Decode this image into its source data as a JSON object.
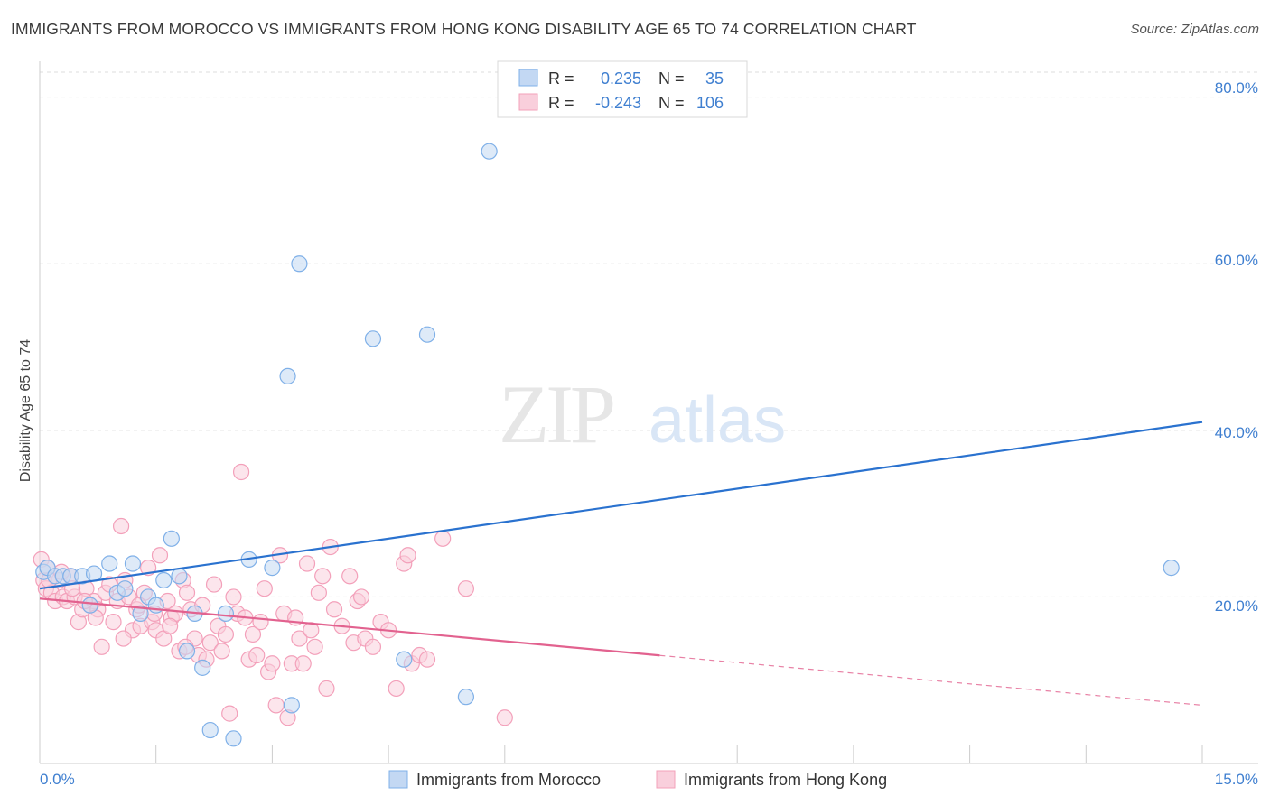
{
  "title": "IMMIGRANTS FROM MOROCCO VS IMMIGRANTS FROM HONG KONG DISABILITY AGE 65 TO 74 CORRELATION CHART",
  "source": "Source: ZipAtlas.com",
  "watermark": {
    "zip": "ZIP",
    "atlas": "atlas"
  },
  "colors": {
    "blue": "#7fb0e8",
    "blue_line": "#2a72cf",
    "pink": "#f3a0ba",
    "pink_line": "#e2628f",
    "axis_text_blue": "#3f7fd0",
    "grid": "#dddddd"
  },
  "legend_top": {
    "rows": [
      {
        "r_label": "R =",
        "r_value": "0.235",
        "n_label": "N =",
        "n_value": "35"
      },
      {
        "r_label": "R =",
        "r_value": "-0.243",
        "n_label": "N =",
        "n_value": "106"
      }
    ]
  },
  "legend_bottom": {
    "items": [
      {
        "label": "Immigrants from Morocco"
      },
      {
        "label": "Immigrants from Hong Kong"
      }
    ]
  },
  "chart_data": {
    "type": "scatter",
    "title": "IMMIGRANTS FROM MOROCCO VS IMMIGRANTS FROM HONG KONG DISABILITY AGE 65 TO 74 CORRELATION CHART",
    "ylabel": "Disability Age 65 to 74",
    "xlabel": "",
    "xlim": [
      0,
      15
    ],
    "ylim": [
      0,
      83
    ],
    "x_tick_labels": [
      "0.0%",
      "15.0%"
    ],
    "y_tick_labels": [
      "20.0%",
      "40.0%",
      "60.0%",
      "80.0%"
    ],
    "y_ticks": [
      20,
      40,
      60,
      80
    ],
    "grid": true,
    "legend_position": "top-center",
    "series": [
      {
        "name": "Immigrants from Morocco",
        "r": 0.235,
        "n": 35,
        "trend": {
          "x": [
            0,
            15
          ],
          "y": [
            21.0,
            41.0
          ],
          "dashed_from": null
        },
        "points": [
          [
            0.05,
            23.0
          ],
          [
            0.1,
            23.5
          ],
          [
            0.2,
            22.5
          ],
          [
            0.3,
            22.5
          ],
          [
            0.4,
            22.5
          ],
          [
            0.55,
            22.5
          ],
          [
            0.7,
            22.8
          ],
          [
            0.9,
            24.0
          ],
          [
            1.0,
            20.5
          ],
          [
            1.1,
            21.0
          ],
          [
            1.2,
            24.0
          ],
          [
            1.3,
            18.0
          ],
          [
            1.4,
            20.0
          ],
          [
            1.5,
            19.0
          ],
          [
            1.6,
            22.0
          ],
          [
            1.7,
            27.0
          ],
          [
            1.8,
            22.5
          ],
          [
            1.9,
            13.5
          ],
          [
            2.0,
            18.0
          ],
          [
            2.1,
            11.5
          ],
          [
            2.2,
            4.0
          ],
          [
            2.4,
            18.0
          ],
          [
            2.5,
            3.0
          ],
          [
            2.7,
            24.5
          ],
          [
            3.0,
            23.5
          ],
          [
            3.2,
            46.5
          ],
          [
            3.25,
            7.0
          ],
          [
            3.35,
            60.0
          ],
          [
            4.3,
            51.0
          ],
          [
            4.7,
            12.5
          ],
          [
            5.0,
            51.5
          ],
          [
            5.5,
            8.0
          ],
          [
            5.8,
            73.5
          ],
          [
            14.6,
            23.5
          ],
          [
            0.65,
            19.0
          ]
        ]
      },
      {
        "name": "Immigrants from Hong Kong",
        "r": -0.243,
        "n": 106,
        "trend": {
          "x": [
            0,
            15
          ],
          "y": [
            19.8,
            7.0
          ],
          "dashed_from": 8.0
        },
        "points": [
          [
            0.02,
            24.5
          ],
          [
            0.05,
            22.0
          ],
          [
            0.08,
            21.0
          ],
          [
            0.1,
            23.5
          ],
          [
            0.15,
            20.5
          ],
          [
            0.2,
            19.5
          ],
          [
            0.25,
            22.0
          ],
          [
            0.3,
            20.0
          ],
          [
            0.35,
            19.5
          ],
          [
            0.4,
            22.5
          ],
          [
            0.45,
            20.0
          ],
          [
            0.5,
            17.0
          ],
          [
            0.55,
            18.5
          ],
          [
            0.6,
            21.0
          ],
          [
            0.65,
            19.0
          ],
          [
            0.7,
            19.5
          ],
          [
            0.75,
            18.5
          ],
          [
            0.8,
            14.0
          ],
          [
            0.85,
            20.5
          ],
          [
            0.9,
            21.5
          ],
          [
            0.95,
            17.0
          ],
          [
            1.0,
            19.5
          ],
          [
            1.05,
            28.5
          ],
          [
            1.1,
            22.0
          ],
          [
            1.15,
            20.0
          ],
          [
            1.2,
            16.0
          ],
          [
            1.25,
            18.5
          ],
          [
            1.3,
            16.5
          ],
          [
            1.35,
            20.5
          ],
          [
            1.4,
            23.5
          ],
          [
            1.45,
            17.0
          ],
          [
            1.5,
            16.0
          ],
          [
            1.55,
            25.0
          ],
          [
            1.6,
            15.0
          ],
          [
            1.65,
            19.5
          ],
          [
            1.7,
            17.5
          ],
          [
            1.75,
            18.0
          ],
          [
            1.8,
            13.5
          ],
          [
            1.85,
            22.0
          ],
          [
            1.9,
            20.5
          ],
          [
            1.95,
            18.5
          ],
          [
            2.0,
            15.0
          ],
          [
            2.05,
            13.0
          ],
          [
            2.1,
            19.0
          ],
          [
            2.15,
            12.5
          ],
          [
            2.2,
            14.5
          ],
          [
            2.25,
            21.5
          ],
          [
            2.3,
            16.5
          ],
          [
            2.35,
            13.5
          ],
          [
            2.4,
            15.5
          ],
          [
            2.45,
            6.0
          ],
          [
            2.5,
            20.0
          ],
          [
            2.55,
            18.0
          ],
          [
            2.6,
            35.0
          ],
          [
            2.65,
            17.5
          ],
          [
            2.7,
            12.5
          ],
          [
            2.75,
            15.5
          ],
          [
            2.8,
            13.0
          ],
          [
            2.85,
            17.0
          ],
          [
            2.9,
            21.0
          ],
          [
            2.95,
            11.0
          ],
          [
            3.0,
            12.0
          ],
          [
            3.05,
            7.0
          ],
          [
            3.1,
            25.0
          ],
          [
            3.15,
            18.0
          ],
          [
            3.2,
            5.5
          ],
          [
            3.25,
            12.0
          ],
          [
            3.3,
            17.5
          ],
          [
            3.35,
            15.0
          ],
          [
            3.4,
            12.0
          ],
          [
            3.45,
            24.0
          ],
          [
            3.5,
            16.0
          ],
          [
            3.55,
            14.0
          ],
          [
            3.6,
            20.5
          ],
          [
            3.65,
            22.5
          ],
          [
            3.7,
            9.0
          ],
          [
            3.75,
            26.0
          ],
          [
            3.8,
            18.5
          ],
          [
            3.9,
            16.5
          ],
          [
            4.0,
            22.5
          ],
          [
            4.05,
            14.5
          ],
          [
            4.1,
            19.5
          ],
          [
            4.15,
            20.0
          ],
          [
            4.2,
            15.0
          ],
          [
            4.3,
            14.0
          ],
          [
            4.4,
            17.0
          ],
          [
            4.5,
            16.0
          ],
          [
            4.6,
            9.0
          ],
          [
            4.7,
            24.0
          ],
          [
            4.75,
            25.0
          ],
          [
            4.8,
            12.0
          ],
          [
            4.9,
            13.0
          ],
          [
            5.0,
            12.5
          ],
          [
            5.2,
            27.0
          ],
          [
            5.5,
            21.0
          ],
          [
            6.0,
            5.5
          ],
          [
            0.12,
            22.0
          ],
          [
            0.28,
            23.0
          ],
          [
            0.42,
            21.0
          ],
          [
            0.58,
            19.5
          ],
          [
            0.72,
            17.5
          ],
          [
            1.08,
            15.0
          ],
          [
            1.28,
            19.0
          ],
          [
            1.48,
            18.0
          ],
          [
            1.68,
            16.5
          ],
          [
            1.88,
            14.0
          ]
        ]
      }
    ]
  }
}
